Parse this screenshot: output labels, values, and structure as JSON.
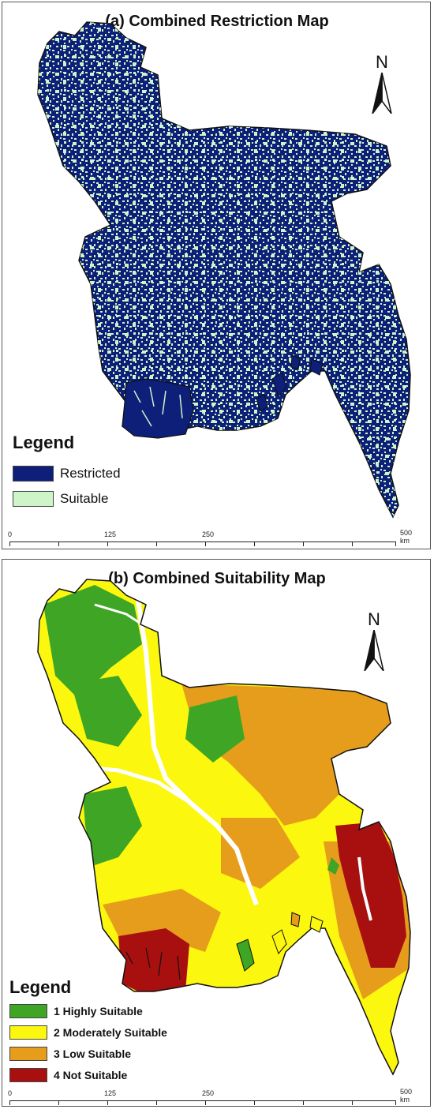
{
  "panel_a": {
    "title": "(a) Combined Restriction Map",
    "north": "N",
    "legend_title": "Legend",
    "legend": [
      {
        "label": "Restricted",
        "color": "#0e1f7a"
      },
      {
        "label": "Suitable",
        "color": "#cdf5c8"
      }
    ],
    "scale": {
      "labels": [
        "0",
        "125",
        "250",
        "500 km"
      ]
    }
  },
  "panel_b": {
    "title": "(b) Combined Suitability Map",
    "north": "N",
    "legend_title": "Legend",
    "legend": [
      {
        "label": "1 Highly Suitable",
        "color": "#3ea624"
      },
      {
        "label": "2 Moderately Suitable",
        "color": "#fbf70f"
      },
      {
        "label": "3 Low Suitable",
        "color": "#e69d1c"
      },
      {
        "label": "4 Not Suitable",
        "color": "#a81010"
      }
    ],
    "scale": {
      "labels": [
        "0",
        "125",
        "250",
        "500 km"
      ]
    }
  },
  "colors": {
    "restricted": "#0e1f7a",
    "suitable": "#cdf5c8",
    "high": "#3ea624",
    "moderate": "#fbf70f",
    "low": "#e69d1c",
    "not": "#a81010"
  }
}
